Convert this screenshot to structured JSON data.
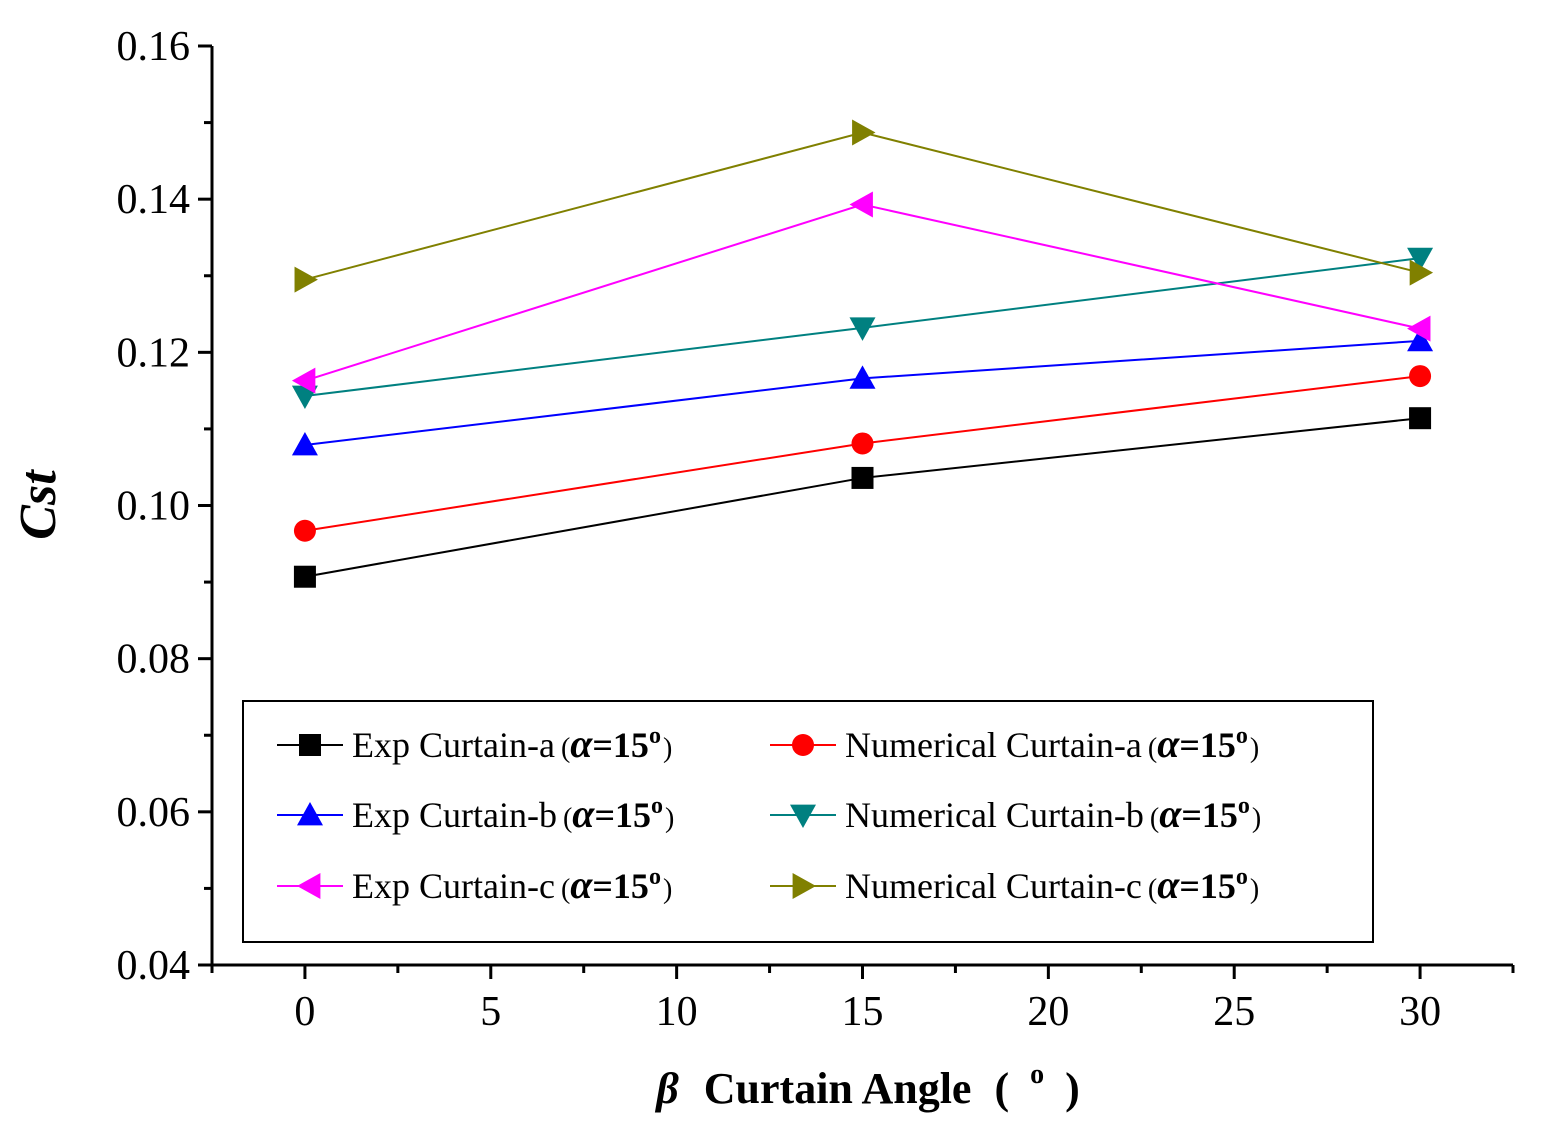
{
  "chart_data": {
    "type": "line",
    "title": "",
    "xlabel": {
      "symbol": "β",
      "text": "Curtain Angle",
      "open": "(",
      "unit_sup": "o",
      "close": ")"
    },
    "ylabel": "Cst",
    "xlim": [
      -2.5,
      32.5
    ],
    "ylim": [
      0.04,
      0.16
    ],
    "x_ticks": [
      0,
      5,
      10,
      15,
      20,
      25,
      30
    ],
    "x_tick_labels": [
      "0",
      "5",
      "10",
      "15",
      "20",
      "25",
      "30"
    ],
    "y_ticks": [
      0.04,
      0.06,
      0.08,
      0.1,
      0.12,
      0.14,
      0.16
    ],
    "y_tick_labels": [
      "0.04",
      "0.06",
      "0.08",
      "0.10",
      "0.12",
      "0.14",
      "0.16"
    ],
    "grid": false,
    "legend_position": "bottom-center, inside",
    "x": [
      0,
      15,
      30
    ],
    "series": [
      {
        "name": "Exp Curtain-a",
        "values": [
          0.0907,
          0.1036,
          0.1114
        ],
        "color": "#000000",
        "marker": "square"
      },
      {
        "name": "Numerical  Curtain-a",
        "values": [
          0.0967,
          0.1081,
          0.1169
        ],
        "color": "#ff0000",
        "marker": "circle"
      },
      {
        "name": "Exp Curtain-b",
        "values": [
          0.1079,
          0.1166,
          0.1215
        ],
        "color": "#0000ff",
        "marker": "triangle-up"
      },
      {
        "name": "Numerical  Curtain-b",
        "values": [
          0.1143,
          0.1232,
          0.1323
        ],
        "color": "#008080",
        "marker": "triangle-down"
      },
      {
        "name": "Exp Curtain-c",
        "values": [
          0.1163,
          0.1393,
          0.1231
        ],
        "color": "#ff00ff",
        "marker": "triangle-left"
      },
      {
        "name": "Numerical  Curtain-c",
        "values": [
          0.1295,
          0.1487,
          0.1304
        ],
        "color": "#808000",
        "marker": "triangle-right"
      }
    ],
    "legend_suffix": {
      "open": "(",
      "alpha": "α",
      "value": "=15",
      "sup": "o",
      "close": ")"
    }
  }
}
